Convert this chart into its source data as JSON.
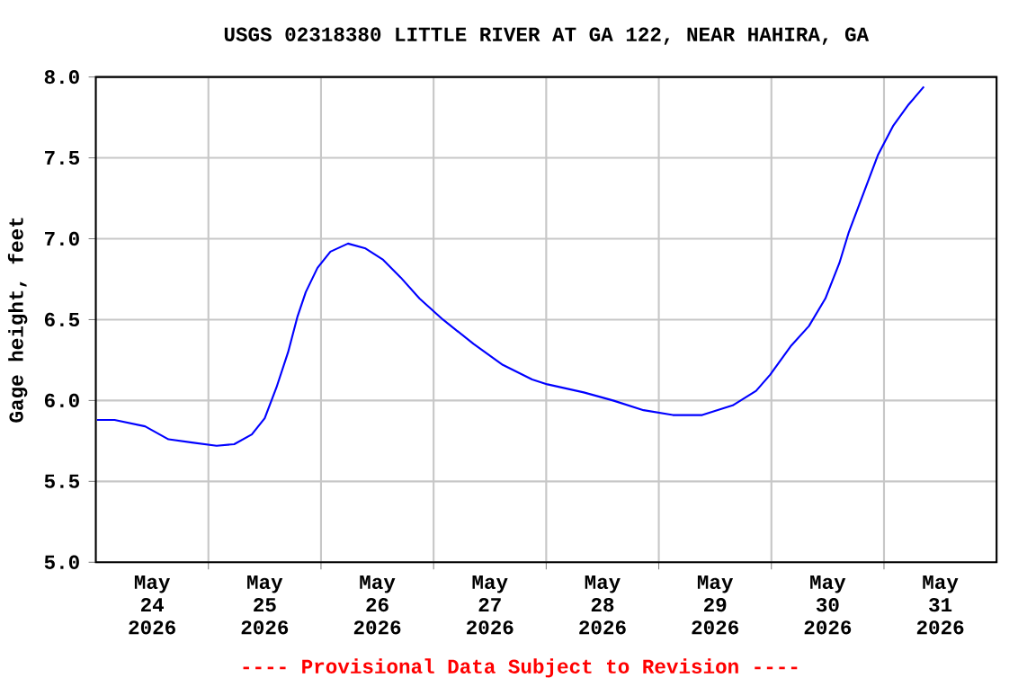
{
  "chart_data": {
    "type": "line",
    "title": "USGS 02318380 LITTLE RIVER AT GA 122, NEAR HAHIRA, GA",
    "ylabel": "Gage height, feet",
    "annotations": [
      "---- Provisional Data Subject to Revision ----"
    ],
    "x": [
      "2026-05-24T00:15",
      "2026-05-24T04:00",
      "2026-05-24T10:30",
      "2026-05-24T15:30",
      "2026-05-24T20:30",
      "2026-05-25T01:45",
      "2026-05-25T05:30",
      "2026-05-25T09:15",
      "2026-05-25T12:00",
      "2026-05-25T14:30",
      "2026-05-25T17:00",
      "2026-05-25T19:00",
      "2026-05-25T20:45",
      "2026-05-25T23:15",
      "2026-05-26T02:00",
      "2026-05-26T05:45",
      "2026-05-26T09:30",
      "2026-05-26T13:15",
      "2026-05-26T17:00",
      "2026-05-26T21:00",
      "2026-05-27T02:00",
      "2026-05-27T08:30",
      "2026-05-27T14:45",
      "2026-05-27T21:00",
      "2026-05-28T00:15",
      "2026-05-28T08:00",
      "2026-05-28T14:15",
      "2026-05-28T20:45",
      "2026-05-29T03:00",
      "2026-05-29T09:15",
      "2026-05-29T15:45",
      "2026-05-29T20:45",
      "2026-05-29T23:45",
      "2026-05-30T04:15",
      "2026-05-30T08:00",
      "2026-05-30T11:30",
      "2026-05-30T14:30",
      "2026-05-30T16:30",
      "2026-05-30T19:45",
      "2026-05-30T22:45",
      "2026-05-31T02:00",
      "2026-05-31T05:15",
      "2026-05-31T08:30"
    ],
    "series": [
      {
        "color": "#0000ff",
        "values": [
          5.88,
          5.88,
          5.84,
          5.76,
          5.74,
          5.72,
          5.73,
          5.79,
          5.89,
          6.08,
          6.3,
          6.52,
          6.67,
          6.82,
          6.92,
          6.97,
          6.94,
          6.87,
          6.76,
          6.63,
          6.5,
          6.35,
          6.22,
          6.13,
          6.1,
          6.05,
          6.0,
          5.94,
          5.91,
          5.91,
          5.97,
          6.06,
          6.16,
          6.34,
          6.46,
          6.63,
          6.85,
          7.04,
          7.29,
          7.52,
          7.7,
          7.83,
          7.94
        ]
      }
    ],
    "xlim": [
      "2026-05-24",
      "2026-06-01"
    ],
    "xticks": [
      {
        "value": "2026-05-25",
        "label": null
      },
      {
        "value": "2026-05-26",
        "label": null
      },
      {
        "value": "2026-05-27",
        "label": null
      },
      {
        "value": "2026-05-28",
        "label": null
      },
      {
        "value": "2026-05-29",
        "label": null
      },
      {
        "value": "2026-05-30",
        "label": null
      },
      {
        "value": "2026-05-31",
        "label": null
      },
      {
        "value": "2026-05-24T12:00",
        "label": "May 24 2026"
      },
      {
        "value": "2026-05-25T12:00",
        "label": "May 25 2026"
      },
      {
        "value": "2026-05-26T12:00",
        "label": "May 26 2026"
      },
      {
        "value": "2026-05-27T12:00",
        "label": "May 27 2026"
      },
      {
        "value": "2026-05-28T12:00",
        "label": "May 28 2026"
      },
      {
        "value": "2026-05-29T12:00",
        "label": "May 29 2026"
      },
      {
        "value": "2026-05-30T12:00",
        "label": "May 30 2026"
      },
      {
        "value": "2026-05-31T12:00",
        "label": "May 31 2026"
      }
    ],
    "ylim": [
      5,
      8
    ],
    "yticks": [
      {
        "value": 5,
        "label": "5.0"
      },
      {
        "value": 5.5,
        "label": "5.5"
      },
      {
        "value": 6,
        "label": "6.0"
      },
      {
        "value": 6.5,
        "label": "6.5"
      },
      {
        "value": 7,
        "label": "7.0"
      },
      {
        "value": 7.5,
        "label": "7.5"
      },
      {
        "value": 8,
        "label": "8.0"
      }
    ],
    "grid": true,
    "legend": false,
    "marker": "none",
    "line_style": "solid"
  }
}
